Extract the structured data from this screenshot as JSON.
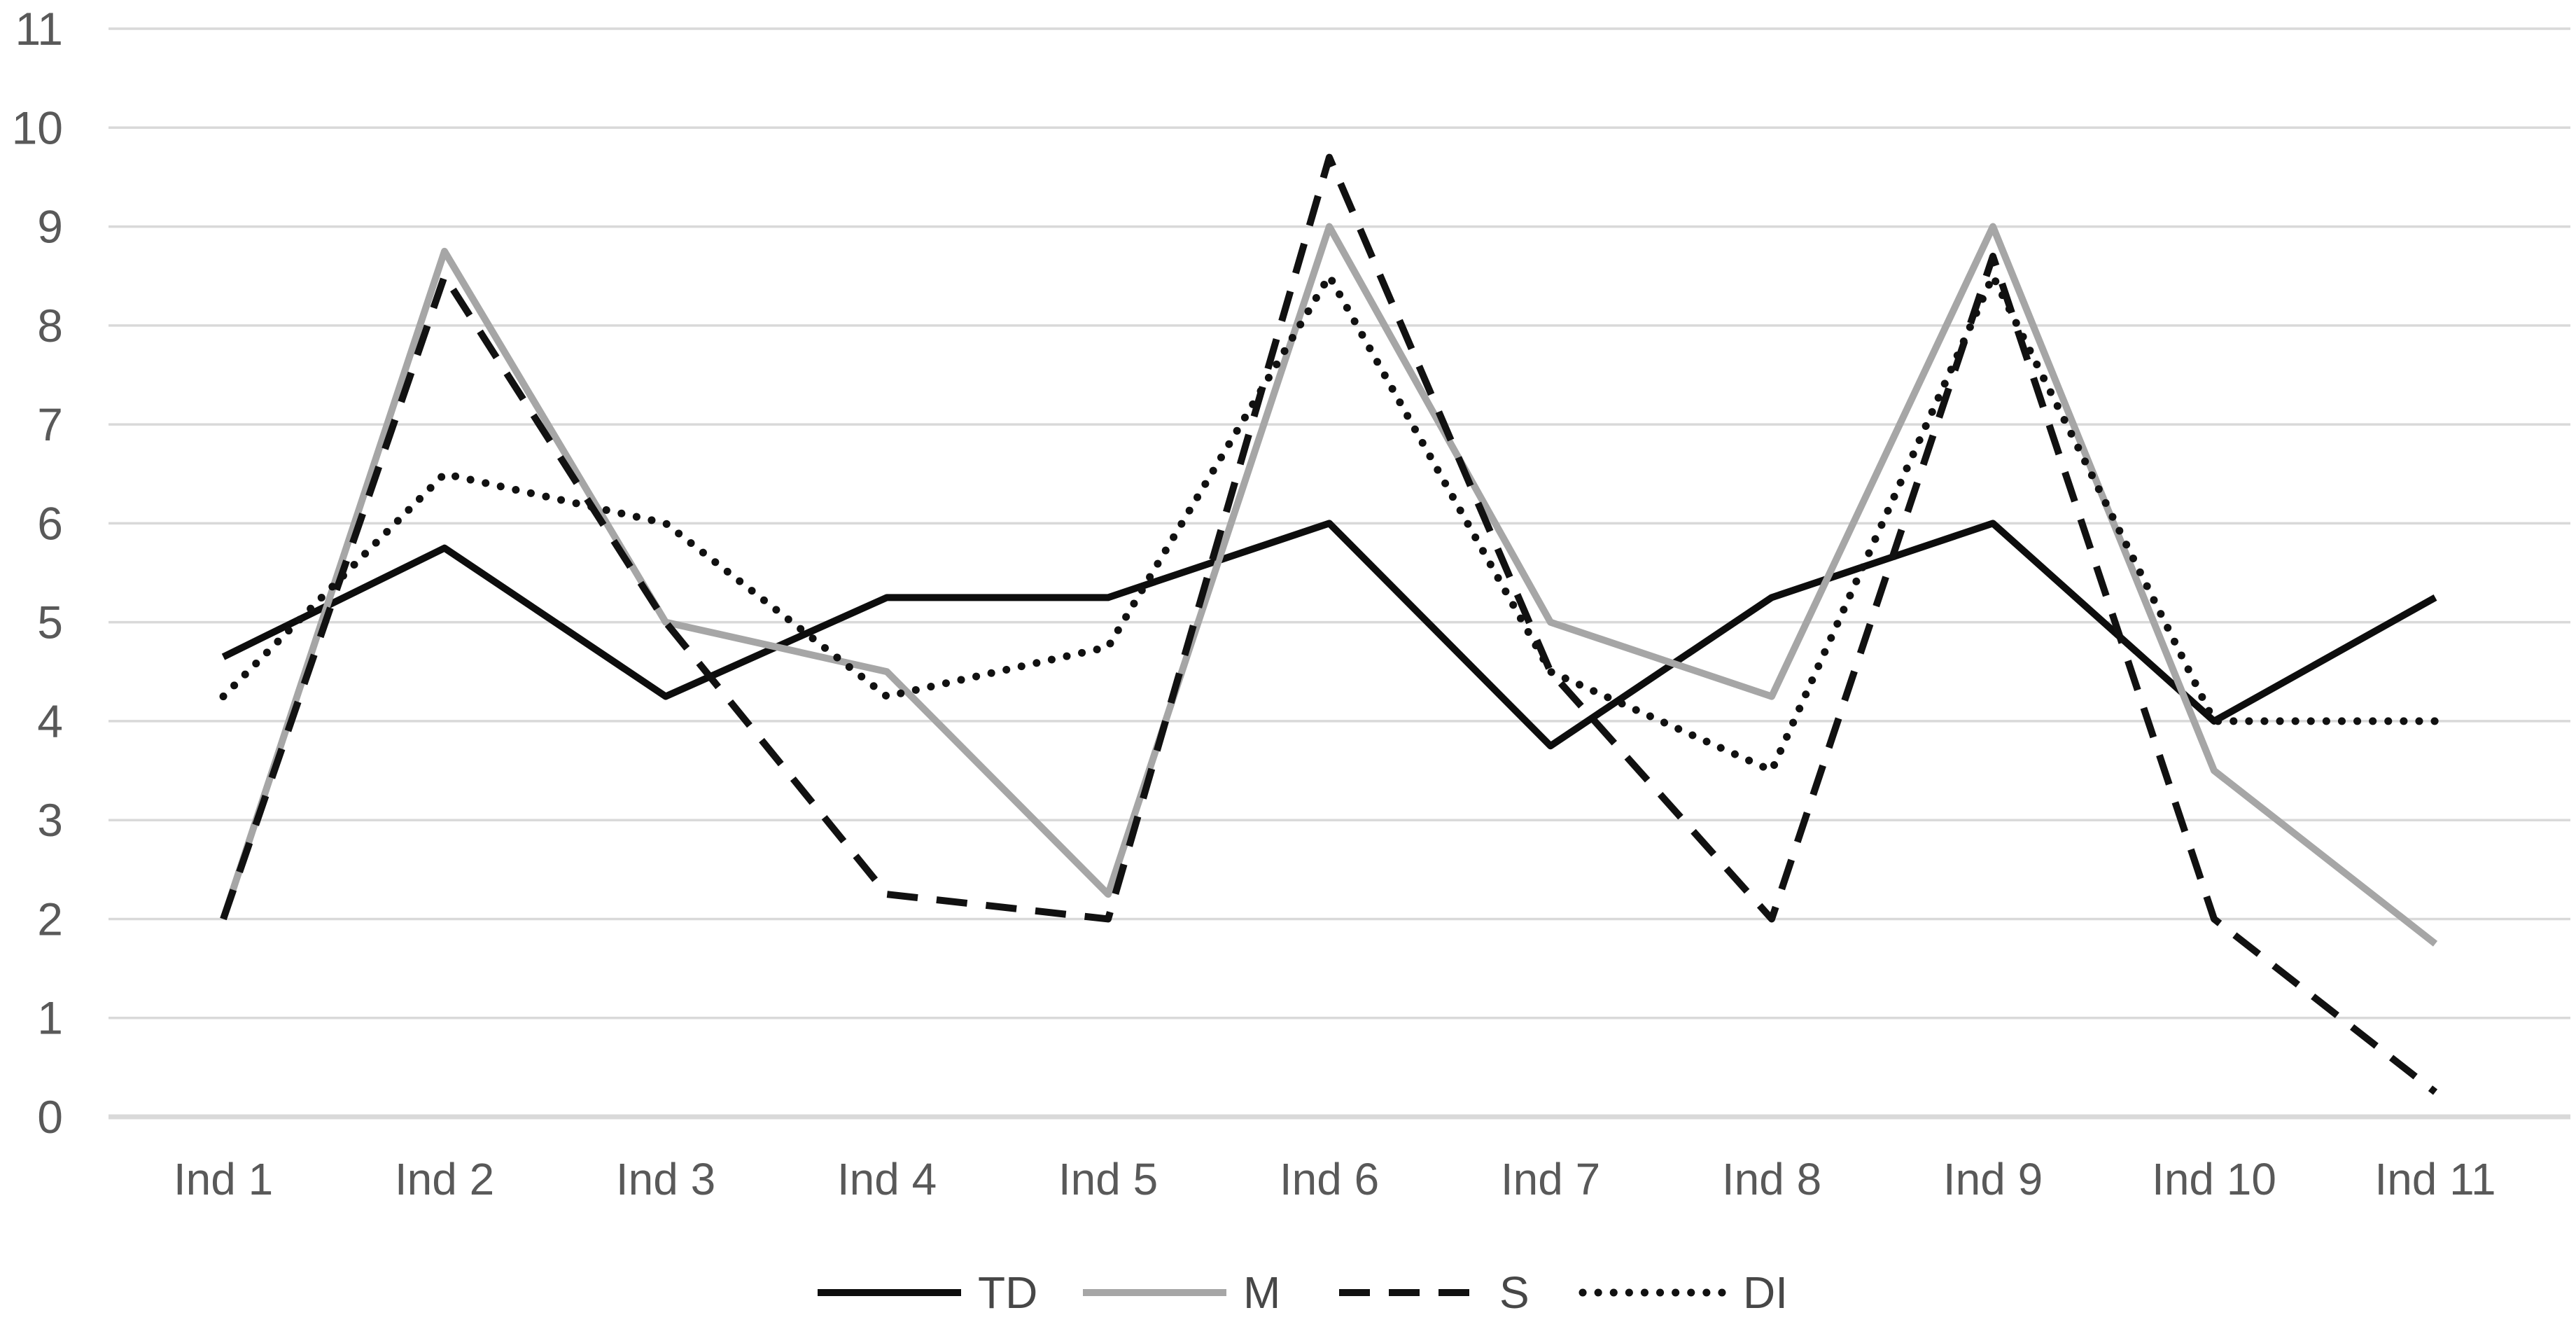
{
  "chart_data": {
    "type": "line",
    "title": "",
    "xlabel": "",
    "ylabel": "",
    "categories": [
      "Ind 1",
      "Ind 2",
      "Ind 3",
      "Ind 4",
      "Ind 5",
      "Ind 6",
      "Ind 7",
      "Ind 8",
      "Ind 9",
      "Ind 10",
      "Ind 11"
    ],
    "series": [
      {
        "name": "TD",
        "style": "solid",
        "color": "#0d0d0d",
        "values": [
          4.65,
          5.75,
          4.25,
          5.25,
          5.25,
          6.0,
          3.75,
          5.25,
          6.0,
          4.0,
          5.25
        ]
      },
      {
        "name": "M",
        "style": "solid",
        "color": "#a6a6a6",
        "values": [
          2.0,
          8.75,
          5.0,
          4.5,
          2.25,
          9.0,
          5.0,
          4.25,
          9.0,
          3.5,
          1.75
        ]
      },
      {
        "name": "S",
        "style": "dashed",
        "color": "#111111",
        "values": [
          2.0,
          8.5,
          5.0,
          2.25,
          2.0,
          9.7,
          4.5,
          2.0,
          8.7,
          2.0,
          0.25
        ]
      },
      {
        "name": "DI",
        "style": "dotted",
        "color": "#111111",
        "values": [
          4.25,
          6.5,
          6.0,
          4.25,
          4.75,
          8.5,
          4.5,
          3.5,
          8.5,
          4.0,
          4.0
        ]
      }
    ],
    "ylim": [
      0,
      11
    ],
    "yticks": [
      0,
      1,
      2,
      3,
      4,
      5,
      6,
      7,
      8,
      9,
      10,
      11
    ],
    "grid": true,
    "legend_position": "bottom",
    "legend_labels": [
      "TD",
      "M",
      "S",
      "DI"
    ]
  },
  "colors": {
    "background": "#ffffff",
    "gridline": "#d9d9d9",
    "zero_axis_line": "#d9d9d9",
    "tick_label": "#595959",
    "legend_label": "#474747"
  }
}
